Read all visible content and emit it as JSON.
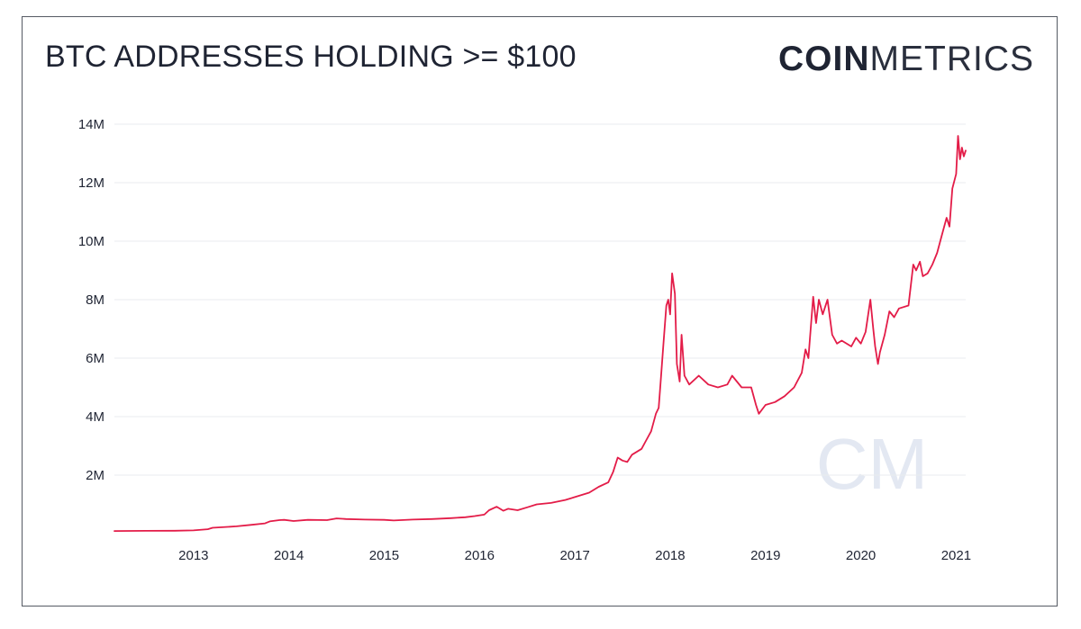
{
  "header": {
    "title": "BTC ADDRESSES HOLDING >= $100",
    "brand_bold": "COIN",
    "brand_light": "METRICS",
    "watermark": "CM"
  },
  "colors": {
    "series": "#e31c48",
    "text": "#1f2433",
    "grid": "#e9ebef",
    "watermark": "#e3e8f2"
  },
  "chart_data": {
    "type": "line",
    "title": "BTC ADDRESSES HOLDING >= $100",
    "xlabel": "",
    "ylabel": "",
    "xlim": [
      2012.17,
      2021.1
    ],
    "ylim": [
      0,
      14000000
    ],
    "y_ticks": [
      2000000,
      4000000,
      6000000,
      8000000,
      10000000,
      12000000,
      14000000
    ],
    "y_tick_labels": [
      "2M",
      "4M",
      "6M",
      "8M",
      "10M",
      "12M",
      "14M"
    ],
    "x_ticks": [
      2013,
      2014,
      2015,
      2016,
      2017,
      2018,
      2019,
      2020,
      2021
    ],
    "x_tick_labels": [
      "2013",
      "2014",
      "2015",
      "2016",
      "2017",
      "2018",
      "2019",
      "2020",
      "2021"
    ],
    "grid": true,
    "legend": "none",
    "series": [
      {
        "x": [
          2012.17,
          2012.5,
          2012.8,
          2013.0,
          2013.15,
          2013.2,
          2013.3,
          2013.45,
          2013.6,
          2013.75,
          2013.8,
          2013.9,
          2013.95,
          2014.05,
          2014.2,
          2014.4,
          2014.5,
          2014.6,
          2014.8,
          2015.0,
          2015.1,
          2015.3,
          2015.5,
          2015.7,
          2015.85,
          2015.95,
          2016.05,
          2016.1,
          2016.18,
          2016.25,
          2016.3,
          2016.4,
          2016.5,
          2016.6,
          2016.75,
          2016.9,
          2017.0,
          2017.1,
          2017.15,
          2017.25,
          2017.35,
          2017.4,
          2017.45,
          2017.5,
          2017.55,
          2017.6,
          2017.7,
          2017.75,
          2017.8,
          2017.85,
          2017.88,
          2017.9,
          2017.93,
          2017.96,
          2017.98,
          2018.0,
          2018.02,
          2018.05,
          2018.07,
          2018.1,
          2018.12,
          2018.15,
          2018.2,
          2018.3,
          2018.4,
          2018.5,
          2018.6,
          2018.65,
          2018.75,
          2018.85,
          2018.9,
          2018.93,
          2019.0,
          2019.1,
          2019.2,
          2019.3,
          2019.38,
          2019.42,
          2019.45,
          2019.5,
          2019.53,
          2019.56,
          2019.6,
          2019.65,
          2019.7,
          2019.75,
          2019.8,
          2019.9,
          2019.95,
          2020.0,
          2020.05,
          2020.1,
          2020.13,
          2020.15,
          2020.18,
          2020.2,
          2020.25,
          2020.3,
          2020.35,
          2020.4,
          2020.5,
          2020.55,
          2020.58,
          2020.62,
          2020.65,
          2020.7,
          2020.75,
          2020.8,
          2020.85,
          2020.9,
          2020.93,
          2020.96,
          2021.0,
          2021.02,
          2021.04,
          2021.06,
          2021.08,
          2021.1
        ],
        "values": [
          90000,
          95000,
          100000,
          110000,
          150000,
          200000,
          220000,
          250000,
          300000,
          350000,
          420000,
          460000,
          470000,
          430000,
          470000,
          460000,
          520000,
          500000,
          480000,
          470000,
          450000,
          480000,
          500000,
          530000,
          560000,
          600000,
          650000,
          800000,
          920000,
          780000,
          850000,
          800000,
          900000,
          1000000,
          1050000,
          1150000,
          1250000,
          1350000,
          1400000,
          1600000,
          1750000,
          2100000,
          2600000,
          2500000,
          2450000,
          2700000,
          2900000,
          3200000,
          3500000,
          4100000,
          4300000,
          5200000,
          6500000,
          7800000,
          8000000,
          7500000,
          8900000,
          8200000,
          5800000,
          5200000,
          6800000,
          5400000,
          5100000,
          5400000,
          5100000,
          5000000,
          5100000,
          5400000,
          5000000,
          5000000,
          4400000,
          4100000,
          4400000,
          4500000,
          4700000,
          5000000,
          5500000,
          6300000,
          6000000,
          8100000,
          7200000,
          8000000,
          7500000,
          8000000,
          6800000,
          6500000,
          6600000,
          6400000,
          6700000,
          6500000,
          6900000,
          8000000,
          7000000,
          6400000,
          5800000,
          6200000,
          6800000,
          7600000,
          7400000,
          7700000,
          7800000,
          9200000,
          9000000,
          9300000,
          8800000,
          8900000,
          9200000,
          9600000,
          10200000,
          10800000,
          10500000,
          11800000,
          12300000,
          13600000,
          12800000,
          13200000,
          12900000,
          13100000
        ]
      }
    ]
  }
}
